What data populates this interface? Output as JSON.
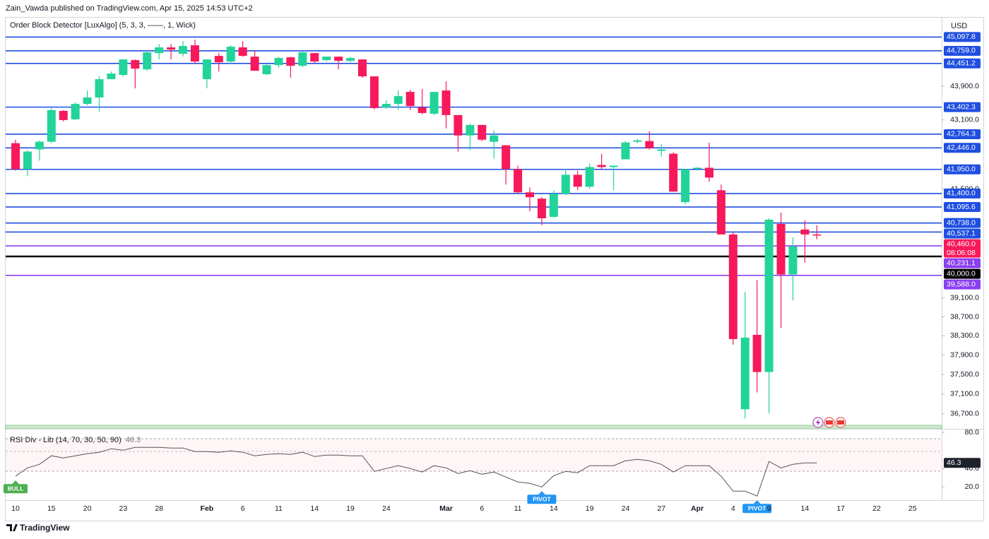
{
  "header": {
    "publisher": "Zain_Vawda published on TradingView.com, Apr 15, 2025 14:53 UTC+2"
  },
  "footer": {
    "brand": "TradingView"
  },
  "chart_data": [
    {
      "type": "candlestick",
      "title": "Order Block Detector [LuxAlgo] (5, 3, 3, ——, 1, Wick)",
      "y_unit": "USD",
      "log_scale": true,
      "grid": false,
      "up_color": "#22d39a",
      "down_color": "#f7195a",
      "categories": [
        "10",
        null,
        null,
        "15",
        null,
        null,
        "20",
        null,
        null,
        "23",
        null,
        null,
        "28",
        null,
        null,
        null,
        "Feb",
        null,
        null,
        "6",
        null,
        null,
        "11",
        null,
        null,
        "14",
        null,
        null,
        "19",
        null,
        null,
        "24",
        null,
        null,
        null,
        null,
        "Mar",
        null,
        null,
        "6",
        null,
        null,
        "11",
        null,
        null,
        "14",
        null,
        null,
        "19",
        null,
        null,
        "24",
        null,
        null,
        "27",
        null,
        null,
        "Apr",
        null,
        null,
        "4",
        null,
        null,
        "9",
        null,
        null,
        "14",
        null,
        null,
        "17",
        null,
        null,
        "22",
        null,
        null,
        "25"
      ],
      "open": [
        42555,
        41955,
        42410,
        42588,
        43313,
        43114,
        43479,
        43631,
        44070,
        44172,
        44532,
        44308,
        44704,
        44843,
        44687,
        44894,
        44070,
        44635,
        44497,
        44843,
        44617,
        44189,
        44411,
        44600,
        44394,
        44704,
        44532,
        44617,
        44514,
        44549,
        44138,
        43396,
        43479,
        43765,
        43396,
        43247,
        43799,
        43214,
        42735,
        42981,
        42588,
        42506,
        41955,
        41426,
        41284,
        40874,
        41395,
        41826,
        41554,
        42051,
        42003,
        42181,
        42588,
        42604,
        42376,
        42311,
        41205,
        41971,
        41987,
        41474,
        40483,
        36793,
        38321,
        37550,
        40717,
        39607,
        40592,
        40483,
        null,
        null,
        null,
        null,
        null,
        null,
        null,
        null
      ],
      "high": [
        42636,
        42390,
        42620,
        43380,
        43330,
        43513,
        43800,
        44138,
        44257,
        44549,
        44549,
        44738,
        44929,
        44929,
        44998,
        45033,
        44549,
        44704,
        44894,
        44998,
        44755,
        44446,
        44617,
        44617,
        44738,
        44704,
        44617,
        44617,
        44617,
        44549,
        44138,
        43563,
        43800,
        43816,
        43833,
        43765,
        44019,
        43214,
        43014,
        42981,
        42849,
        42506,
        42035,
        41537,
        41316,
        41474,
        41955,
        41922,
        42084,
        42311,
        42035,
        42604,
        42653,
        42833,
        42539,
        42343,
        41955,
        42003,
        42571,
        41602,
        40530,
        39229,
        39485,
        40843,
        40969,
        40421,
        40796,
        40686,
        null,
        null,
        null,
        null,
        null,
        null,
        null,
        null
      ],
      "low": [
        41922,
        41794,
        42150,
        42555,
        43065,
        43097,
        43446,
        43296,
        44070,
        44138,
        43850,
        44274,
        44549,
        44549,
        44617,
        44446,
        43850,
        44257,
        44446,
        44617,
        44274,
        44172,
        44343,
        44104,
        44360,
        44463,
        44497,
        44308,
        44480,
        44104,
        43346,
        43363,
        43330,
        43330,
        43230,
        43214,
        42899,
        42360,
        42390,
        42604,
        42197,
        41602,
        41395,
        41000,
        40686,
        40858,
        41363,
        41474,
        41506,
        41955,
        41474,
        42181,
        42555,
        42408,
        42246,
        41443,
        41157,
        41922,
        41666,
        40483,
        38116,
        36609,
        37133,
        36709,
        38468,
        39049,
        39868,
        40375,
        null,
        null,
        null,
        null,
        null,
        null,
        null,
        null
      ],
      "close": [
        41955,
        42360,
        42588,
        43330,
        43097,
        43479,
        43631,
        44070,
        44206,
        44549,
        44325,
        44721,
        44843,
        44790,
        44877,
        44497,
        44549,
        44480,
        44860,
        44635,
        44274,
        44411,
        44583,
        44394,
        44721,
        44497,
        44617,
        44514,
        44583,
        44138,
        43379,
        43479,
        43664,
        43429,
        43263,
        43765,
        43214,
        42735,
        42981,
        42636,
        42735,
        41955,
        41426,
        41316,
        40843,
        41395,
        41826,
        41554,
        42003,
        42003,
        42035,
        42571,
        42620,
        42441,
        42408,
        41443,
        41955,
        41987,
        41762,
        40483,
        38233,
        38262,
        37550,
        40811,
        39607,
        40220,
        40483,
        40460,
        null,
        null,
        null,
        null,
        null,
        null,
        null,
        null
      ],
      "ylim": [
        36430,
        45490
      ],
      "yticks": [
        {
          "value": 43900,
          "label": "43,900.0"
        },
        {
          "value": 43100,
          "label": "43,100.0"
        },
        {
          "value": 41500,
          "label": "41,500.0"
        },
        {
          "value": 39100,
          "label": "39,100.0"
        },
        {
          "value": 38700,
          "label": "38,700.0"
        },
        {
          "value": 38300,
          "label": "38,300.0"
        },
        {
          "value": 37900,
          "label": "37,900.0"
        },
        {
          "value": 37500,
          "label": "37,500.0"
        },
        {
          "value": 37100,
          "label": "37,100.0"
        },
        {
          "value": 36700,
          "label": "36,700.0"
        }
      ],
      "levels": [
        {
          "value": 45097.8,
          "label": "45,097.8",
          "color": "#1f4fe0"
        },
        {
          "value": 44759.0,
          "label": "44,759.0",
          "color": "#1f4fe0"
        },
        {
          "value": 44451.2,
          "label": "44,451.2",
          "color": "#1f4fe0"
        },
        {
          "value": 43402.3,
          "label": "43,402.3",
          "color": "#1f4fe0"
        },
        {
          "value": 42764.3,
          "label": "42,764.3",
          "color": "#1f4fe0"
        },
        {
          "value": 42446.0,
          "label": "42,446.0",
          "color": "#1f4fe0"
        },
        {
          "value": 41950.0,
          "label": "41,950.0",
          "color": "#1f4fe0"
        },
        {
          "value": 41400.0,
          "label": "41,400.0",
          "color": "#1f4fe0"
        },
        {
          "value": 41095.6,
          "label": "41,095.6",
          "color": "#1f4fe0"
        },
        {
          "value": 40738.0,
          "label": "40,738.0",
          "color": "#1f4fe0"
        },
        {
          "value": 40537.1,
          "label": "40,537.1",
          "color": "#1f4fe0"
        },
        {
          "value": 40231.1,
          "label": "40,231.1",
          "color": "#8a3ff0"
        },
        {
          "value": 40000.0,
          "label": "40,000.0",
          "color": "#000000"
        },
        {
          "value": 39588.0,
          "label": "39,588.0",
          "color": "#8a3ff0"
        }
      ],
      "last_price": {
        "value": 40460,
        "label": "40,460.0",
        "color": "#f7195a"
      },
      "countdown": "08:06:08"
    },
    {
      "type": "line",
      "title": "RSI Div - Lib (14, 70, 30, 50, 90)",
      "color": "#555555",
      "values": [
        31.5,
        40.8,
        44.7,
        54.1,
        51.8,
        54.1,
        56.4,
        58.0,
        61.9,
        60.3,
        63.4,
        63.4,
        63.4,
        62.7,
        62.7,
        58.8,
        58.8,
        58.0,
        59.6,
        58.0,
        54.1,
        55.7,
        56.4,
        55.7,
        58.0,
        53.3,
        54.9,
        54.9,
        54.1,
        54.1,
        36.9,
        40.1,
        43.2,
        40.1,
        36.2,
        43.2,
        40.8,
        34.6,
        37.7,
        33.8,
        36.2,
        30.7,
        25.3,
        23.7,
        19.8,
        32.3,
        36.9,
        35.4,
        43.2,
        43.2,
        43.2,
        48.6,
        50.2,
        48.6,
        44.7,
        36.2,
        43.2,
        43.2,
        43.2,
        31.5,
        15.1,
        15.1,
        9.7,
        47.9,
        40.8,
        44.7,
        46.3,
        46.3,
        null,
        null,
        null,
        null,
        null,
        null,
        null,
        null
      ],
      "markers": [
        "BULL",
        null,
        null,
        null,
        null,
        null,
        null,
        null,
        null,
        null,
        null,
        null,
        null,
        null,
        null,
        null,
        null,
        null,
        null,
        null,
        null,
        null,
        null,
        null,
        null,
        null,
        null,
        null,
        null,
        null,
        null,
        null,
        null,
        null,
        null,
        null,
        null,
        null,
        null,
        null,
        null,
        null,
        null,
        null,
        "PIVOT",
        null,
        null,
        null,
        null,
        null,
        null,
        null,
        null,
        null,
        null,
        null,
        null,
        null,
        null,
        null,
        null,
        null,
        "PIVOT",
        null,
        null,
        null,
        null,
        null,
        null,
        null,
        null,
        null,
        null,
        null,
        null,
        null
      ],
      "marker_colors": {
        "BULL": "#4caf50",
        "PIVOT": "#2196f3"
      },
      "ylim": [
        5.2,
        83.1
      ],
      "yticks": [
        {
          "value": 80,
          "label": "80.0"
        },
        {
          "value": 40,
          "label": "40.0"
        },
        {
          "value": 20,
          "label": "20.0"
        }
      ]
    }
  ]
}
